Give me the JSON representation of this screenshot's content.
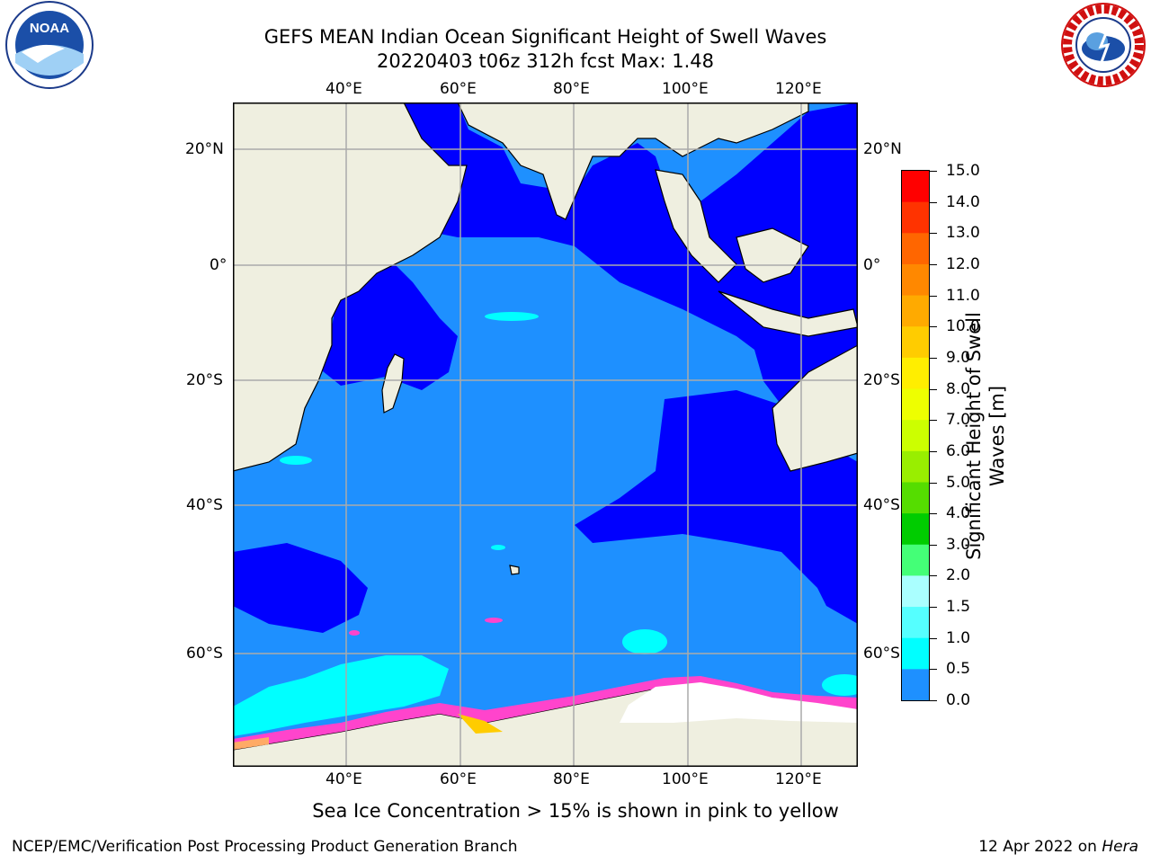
{
  "title": {
    "line1": "GEFS MEAN Indian Ocean Significant Height of Swell Waves",
    "line2": "20220403 t06z 312h fcst   Max: 1.48"
  },
  "map": {
    "lon_ticks": [
      "40°E",
      "60°E",
      "80°E",
      "100°E",
      "120°E"
    ],
    "lat_ticks_left": [
      "20°N",
      "0°",
      "20°S",
      "40°S",
      "60°S"
    ],
    "lat_ticks_right": [
      "20°N",
      "0°",
      "20°S",
      "40°S",
      "60°S"
    ],
    "grid": true,
    "colors": {
      "land": "#efefe0",
      "ocean_low": "#0000ff",
      "ocean_mid": "#1e90ff",
      "swell_high": "#00ffff",
      "ice_pink": "#ff44cc",
      "ice_white": "#ffffff"
    }
  },
  "colorbar": {
    "label": "Significant Height of Swell Waves [m]",
    "ticks": [
      "15.0",
      "14.0",
      "13.0",
      "12.0",
      "11.0",
      "10.0",
      "9.0",
      "8.0",
      "7.0",
      "6.0",
      "5.0",
      "4.0",
      "3.0",
      "2.0",
      "1.5",
      "1.0",
      "0.5",
      "0.0"
    ],
    "colors": [
      "#ff0000",
      "#ff3300",
      "#ff6600",
      "#ff8800",
      "#ffaa00",
      "#ffcc00",
      "#ffee00",
      "#eeff00",
      "#ccff00",
      "#99ee00",
      "#55dd00",
      "#00cc00",
      "#44ff77",
      "#aaffff",
      "#55ffff",
      "#00ffff",
      "#1e90ff",
      "#0000ff"
    ]
  },
  "caption": "Sea Ice Concentration > 15% is shown in pink to yellow",
  "footer": {
    "left": "NCEP/EMC/Verification Post Processing Product Generation Branch",
    "right_date": "12 Apr 2022 on ",
    "right_host": "Hera"
  },
  "logos": {
    "left_text": "NOAA",
    "right_text": "NATIONAL WEATHER SERVICE"
  }
}
